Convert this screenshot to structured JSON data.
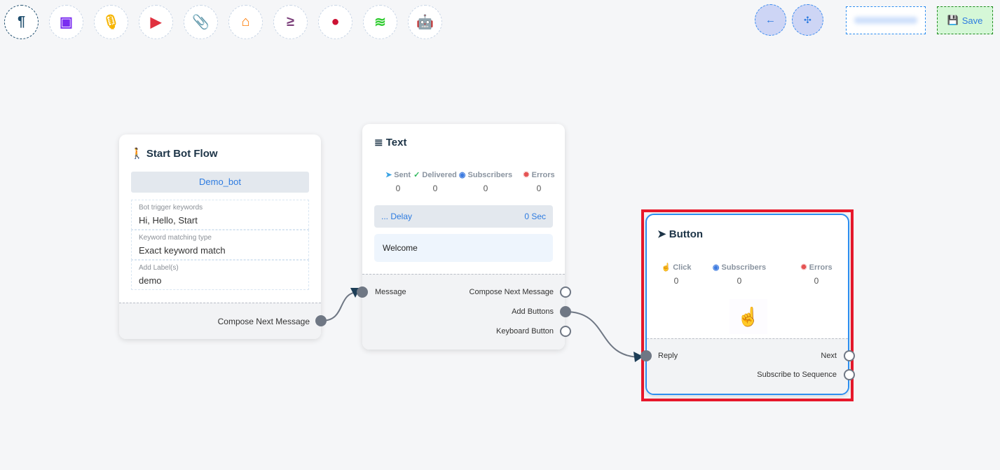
{
  "toolbar": [
    {
      "icon": "paragraph-icon",
      "glyph": "¶",
      "color": "#1f4e6e"
    },
    {
      "icon": "image-icon",
      "glyph": "▣",
      "color": "#7a2cf0"
    },
    {
      "icon": "microphone-icon",
      "glyph": "🎙",
      "color": "#f6b400"
    },
    {
      "icon": "youtube-icon",
      "glyph": "▶",
      "color": "#e0313f"
    },
    {
      "icon": "paperclip-icon",
      "glyph": "📎",
      "color": "#1b9b4a"
    },
    {
      "icon": "store-icon",
      "glyph": "⌂",
      "color": "#ff7a00"
    },
    {
      "icon": "greater-equal-icon",
      "glyph": "≥",
      "color": "#7b3f7a"
    },
    {
      "icon": "drop-icon",
      "glyph": "●",
      "color": "#cc1233"
    },
    {
      "icon": "stack-icon",
      "glyph": "≋",
      "color": "#33cc33"
    },
    {
      "icon": "robot-icon",
      "glyph": "🤖",
      "color": "#1a1aff"
    }
  ],
  "top_right": {
    "back_icon": "arrow-left-icon",
    "compress_icon": "compress-icon",
    "bot_name_blurred": "",
    "save_label": "Save"
  },
  "start_node": {
    "title": "Start Bot Flow",
    "bot_name": "Demo_bot",
    "fields": [
      {
        "label": "Bot trigger keywords",
        "value": "Hi, Hello, Start"
      },
      {
        "label": "Keyword matching type",
        "value": "Exact keyword match"
      },
      {
        "label": "Add Label(s)",
        "value": "demo"
      }
    ],
    "output": "Compose Next Message"
  },
  "text_node": {
    "title": "Text",
    "stats": [
      {
        "label": "Sent",
        "value": "0",
        "color": "#3aa3e3"
      },
      {
        "label": "Delivered",
        "value": "0",
        "color": "#2eb85c"
      },
      {
        "label": "Subscribers",
        "value": "0",
        "color": "#3d7be0"
      },
      {
        "label": "Errors",
        "value": "0",
        "color": "#e55353"
      }
    ],
    "delay_label": "... Delay",
    "delay_value": "0 Sec",
    "message": "Welcome",
    "input": "Message",
    "outputs": [
      "Compose Next Message",
      "Add Buttons",
      "Keyboard Button"
    ]
  },
  "button_node": {
    "title": "Button",
    "stats": [
      {
        "label": "Click",
        "value": "0",
        "color": "#3aa3e3"
      },
      {
        "label": "Subscribers",
        "value": "0",
        "color": "#3d7be0"
      },
      {
        "label": "Errors",
        "value": "0",
        "color": "#e55353"
      }
    ],
    "input": "Reply",
    "outputs": [
      "Next",
      "Subscribe to Sequence"
    ]
  },
  "highlight_color": "#e8192c"
}
